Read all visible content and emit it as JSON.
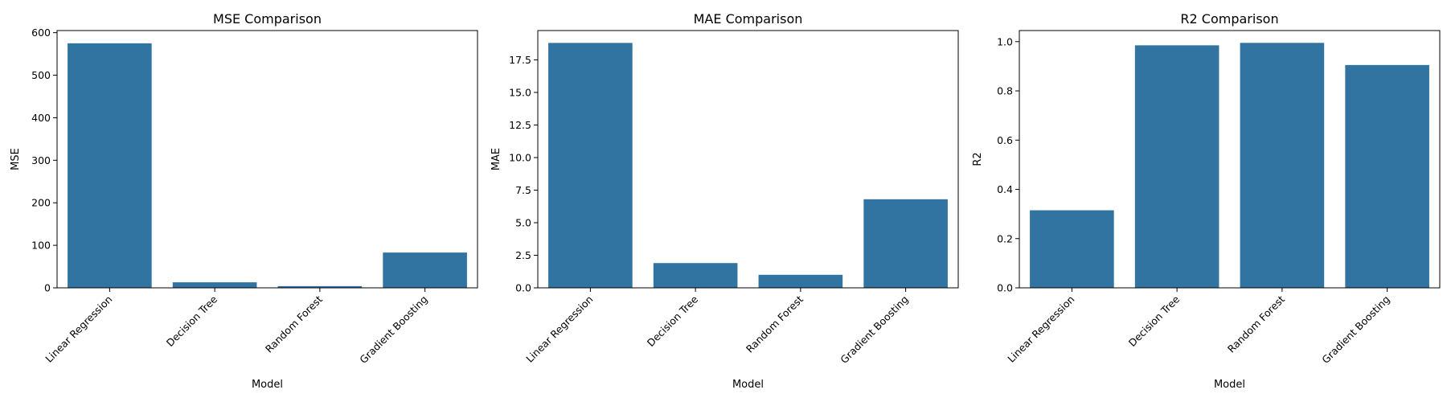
{
  "chart_data": [
    {
      "type": "bar",
      "title": "MSE Comparison",
      "xlabel": "Model",
      "ylabel": "MSE",
      "categories": [
        "Linear Regression",
        "Decision Tree",
        "Random Forest",
        "Gradient Boosting"
      ],
      "values": [
        575,
        13,
        4,
        83
      ],
      "ylim": [
        0,
        605
      ],
      "yticks": [
        0,
        100,
        200,
        300,
        400,
        500,
        600
      ],
      "ytick_labels": [
        "0",
        "100",
        "200",
        "300",
        "400",
        "500",
        "600"
      ],
      "grid": false,
      "bar_color": "#3274a1"
    },
    {
      "type": "bar",
      "title": "MAE Comparison",
      "xlabel": "Model",
      "ylabel": "MAE",
      "categories": [
        "Linear Regression",
        "Decision Tree",
        "Random Forest",
        "Gradient Boosting"
      ],
      "values": [
        18.8,
        1.9,
        1.0,
        6.8
      ],
      "ylim": [
        0,
        19.75
      ],
      "yticks": [
        0,
        2.5,
        5.0,
        7.5,
        10.0,
        12.5,
        15.0,
        17.5
      ],
      "ytick_labels": [
        "0.0",
        "2.5",
        "5.0",
        "7.5",
        "10.0",
        "12.5",
        "15.0",
        "17.5"
      ],
      "grid": false,
      "bar_color": "#3274a1"
    },
    {
      "type": "bar",
      "title": "R2 Comparison",
      "xlabel": "Model",
      "ylabel": "R2",
      "categories": [
        "Linear Regression",
        "Decision Tree",
        "Random Forest",
        "Gradient Boosting"
      ],
      "values": [
        0.315,
        0.985,
        0.995,
        0.905
      ],
      "ylim": [
        0,
        1.045
      ],
      "yticks": [
        0,
        0.2,
        0.4,
        0.6,
        0.8,
        1.0
      ],
      "ytick_labels": [
        "0.0",
        "0.2",
        "0.4",
        "0.6",
        "0.8",
        "1.0"
      ],
      "grid": false,
      "bar_color": "#3274a1"
    }
  ]
}
